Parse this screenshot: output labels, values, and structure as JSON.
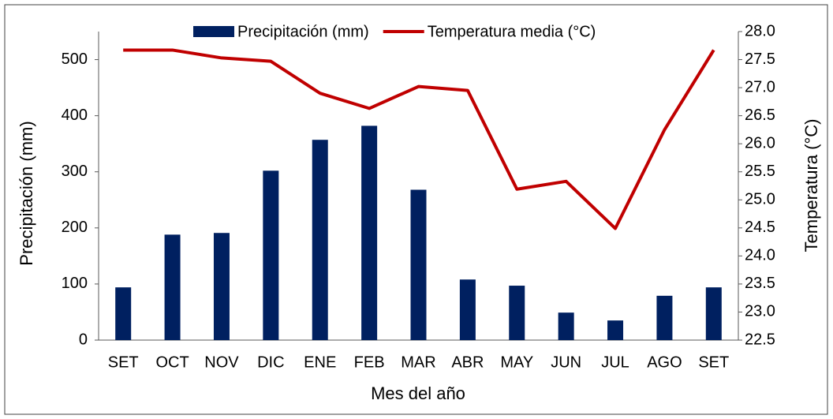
{
  "chart_data": {
    "type": "bar-line",
    "x_label": "Mes del año",
    "y_label": "Precipitación (mm)",
    "y2_label": "Temperatura (°C)",
    "categories": [
      "SET",
      "OCT",
      "NOV",
      "DIC",
      "ENE",
      "FEB",
      "MAR",
      "ABR",
      "MAY",
      "JUN",
      "JUL",
      "AGO",
      "SET"
    ],
    "series": [
      {
        "name": "Precipitación (mm)",
        "type": "bar",
        "color": "#002060",
        "axis": "y",
        "values": [
          94,
          188,
          191,
          302,
          357,
          382,
          268,
          108,
          97,
          49,
          35,
          79,
          94
        ]
      },
      {
        "name": "Temperatura media (°C)",
        "type": "line",
        "color": "#c00000",
        "axis": "y2",
        "values": [
          27.67,
          27.67,
          27.53,
          27.47,
          26.9,
          26.63,
          27.02,
          26.95,
          25.19,
          25.33,
          24.49,
          26.25,
          27.67
        ]
      }
    ],
    "ylim": [
      0,
      550
    ],
    "yticks": [
      0,
      100,
      200,
      300,
      400,
      500
    ],
    "y2lim": [
      22.5,
      28
    ],
    "y2ticks": [
      22.5,
      {
        "value": 23,
        "label": "23.0"
      },
      23.5,
      {
        "value": 24,
        "label": "24.0"
      },
      24.5,
      {
        "value": 25,
        "label": "25.0"
      },
      25.5,
      {
        "value": 26,
        "label": "26.0"
      },
      26.5,
      {
        "value": 27,
        "label": "27.0"
      },
      27.5,
      {
        "value": 28,
        "label": "28.0"
      }
    ],
    "legend": "top",
    "grid": false
  }
}
